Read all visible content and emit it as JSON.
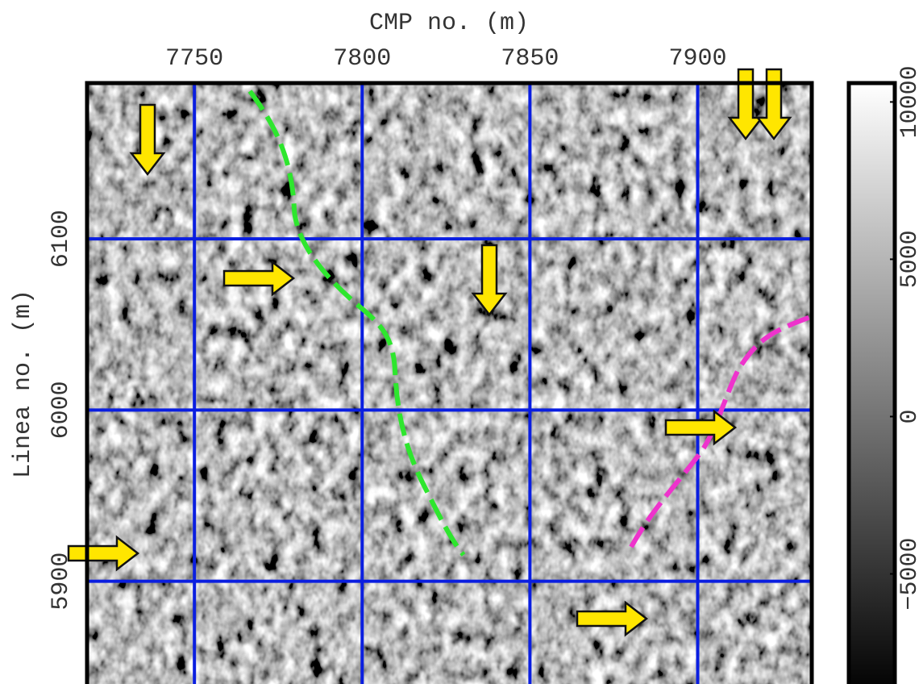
{
  "chart_data": {
    "type": "image",
    "x_label": "CMP no. (m)",
    "y_label": "Linea no. (m)",
    "xlim": [
      7718,
      7934
    ],
    "xticks": [
      7750,
      7800,
      7850,
      7900
    ],
    "ylim": [
      5840,
      6191
    ],
    "yticks": [
      5900,
      6000,
      6100
    ],
    "grid": true,
    "grid_color": "#0a1ee0",
    "colorbar": {
      "clim": [
        -8500,
        10600
      ],
      "ticks": [
        {
          "value": -5000,
          "label": "−5000"
        },
        0,
        5000,
        10000
      ]
    }
  }
}
